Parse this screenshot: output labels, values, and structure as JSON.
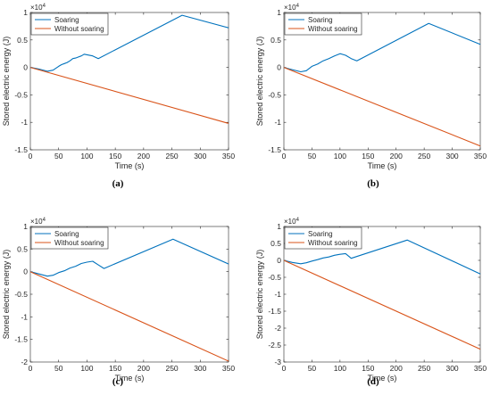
{
  "chart_data": [
    {
      "type": "line",
      "panel": "(a)",
      "caption": "(a)",
      "xlabel": "Time (s)",
      "ylabel": "Stored electric energy (J)",
      "exponent": "×10",
      "exponent_power": "4",
      "xlim": [
        0,
        350
      ],
      "ylim": [
        -1.5,
        1
      ],
      "xticks": [
        0,
        50,
        100,
        150,
        200,
        250,
        300,
        350
      ],
      "yticks": [
        -1.5,
        -1,
        -0.5,
        0,
        0.5,
        1
      ],
      "legend": "top-left",
      "series": [
        {
          "name": "Soaring",
          "color": "#0072BD",
          "x": [
            0,
            15,
            30,
            40,
            50,
            55,
            60,
            65,
            70,
            75,
            80,
            85,
            90,
            95,
            100,
            110,
            120,
            268,
            350
          ],
          "y": [
            0,
            -0.03,
            -0.07,
            -0.05,
            0.02,
            0.05,
            0.07,
            0.09,
            0.12,
            0.16,
            0.17,
            0.19,
            0.21,
            0.24,
            0.23,
            0.21,
            0.16,
            0.95,
            0.72
          ]
        },
        {
          "name": "Without soaring",
          "color": "#D95319",
          "x": [
            0,
            350
          ],
          "y": [
            0,
            -1.02
          ]
        }
      ]
    },
    {
      "type": "line",
      "panel": "(b)",
      "caption": "(b)",
      "xlabel": "Time (s)",
      "ylabel": "Stored electric energy (J)",
      "exponent": "×10",
      "exponent_power": "4",
      "xlim": [
        0,
        350
      ],
      "ylim": [
        -1.5,
        1
      ],
      "xticks": [
        0,
        50,
        100,
        150,
        200,
        250,
        300,
        350
      ],
      "yticks": [
        -1.5,
        -1,
        -0.5,
        0,
        0.5,
        1
      ],
      "legend": "top-left",
      "series": [
        {
          "name": "Soaring",
          "color": "#0072BD",
          "x": [
            0,
            15,
            30,
            40,
            50,
            60,
            70,
            80,
            90,
            100,
            110,
            120,
            130,
            258,
            350
          ],
          "y": [
            0,
            -0.04,
            -0.08,
            -0.06,
            0.02,
            0.06,
            0.12,
            0.16,
            0.21,
            0.25,
            0.22,
            0.16,
            0.12,
            0.8,
            0.42
          ]
        },
        {
          "name": "Without soaring",
          "color": "#D95319",
          "x": [
            0,
            350
          ],
          "y": [
            0,
            -1.43
          ]
        }
      ]
    },
    {
      "type": "line",
      "panel": "(c)",
      "caption": "(c)",
      "xlabel": "Time (s)",
      "ylabel": "Stored electric energy (J)",
      "exponent": "×10",
      "exponent_power": "4",
      "xlim": [
        0,
        350
      ],
      "ylim": [
        -2,
        1
      ],
      "xticks": [
        0,
        50,
        100,
        150,
        200,
        250,
        300,
        350
      ],
      "yticks": [
        -2,
        -1.5,
        -1,
        -0.5,
        0,
        0.5,
        1
      ],
      "legend": "top-left",
      "series": [
        {
          "name": "Soaring",
          "color": "#0072BD",
          "x": [
            0,
            15,
            30,
            40,
            50,
            60,
            70,
            80,
            90,
            100,
            110,
            120,
            130,
            252,
            350
          ],
          "y": [
            0,
            -0.05,
            -0.1,
            -0.08,
            -0.02,
            0.02,
            0.08,
            0.12,
            0.18,
            0.21,
            0.23,
            0.15,
            0.07,
            0.72,
            0.17
          ]
        },
        {
          "name": "Without soaring",
          "color": "#D95319",
          "x": [
            0,
            350
          ],
          "y": [
            0,
            -1.98
          ]
        }
      ]
    },
    {
      "type": "line",
      "panel": "(d)",
      "caption": "(d)",
      "xlabel": "Time (s)",
      "ylabel": "Stored electric energy (J)",
      "exponent": "×10",
      "exponent_power": "4",
      "xlim": [
        0,
        350
      ],
      "ylim": [
        -3,
        1
      ],
      "xticks": [
        0,
        50,
        100,
        150,
        200,
        250,
        300,
        350
      ],
      "yticks": [
        -3,
        -2.5,
        -2,
        -1.5,
        -1,
        -0.5,
        0,
        0.5,
        1
      ],
      "legend": "top-left",
      "series": [
        {
          "name": "Soaring",
          "color": "#0072BD",
          "x": [
            0,
            15,
            30,
            40,
            50,
            60,
            70,
            80,
            90,
            100,
            110,
            120,
            220,
            350
          ],
          "y": [
            0,
            -0.06,
            -0.1,
            -0.07,
            -0.02,
            0.02,
            0.07,
            0.1,
            0.15,
            0.18,
            0.2,
            0.06,
            0.6,
            -0.4
          ]
        },
        {
          "name": "Without soaring",
          "color": "#D95319",
          "x": [
            0,
            350
          ],
          "y": [
            0,
            -2.62
          ]
        }
      ]
    }
  ]
}
